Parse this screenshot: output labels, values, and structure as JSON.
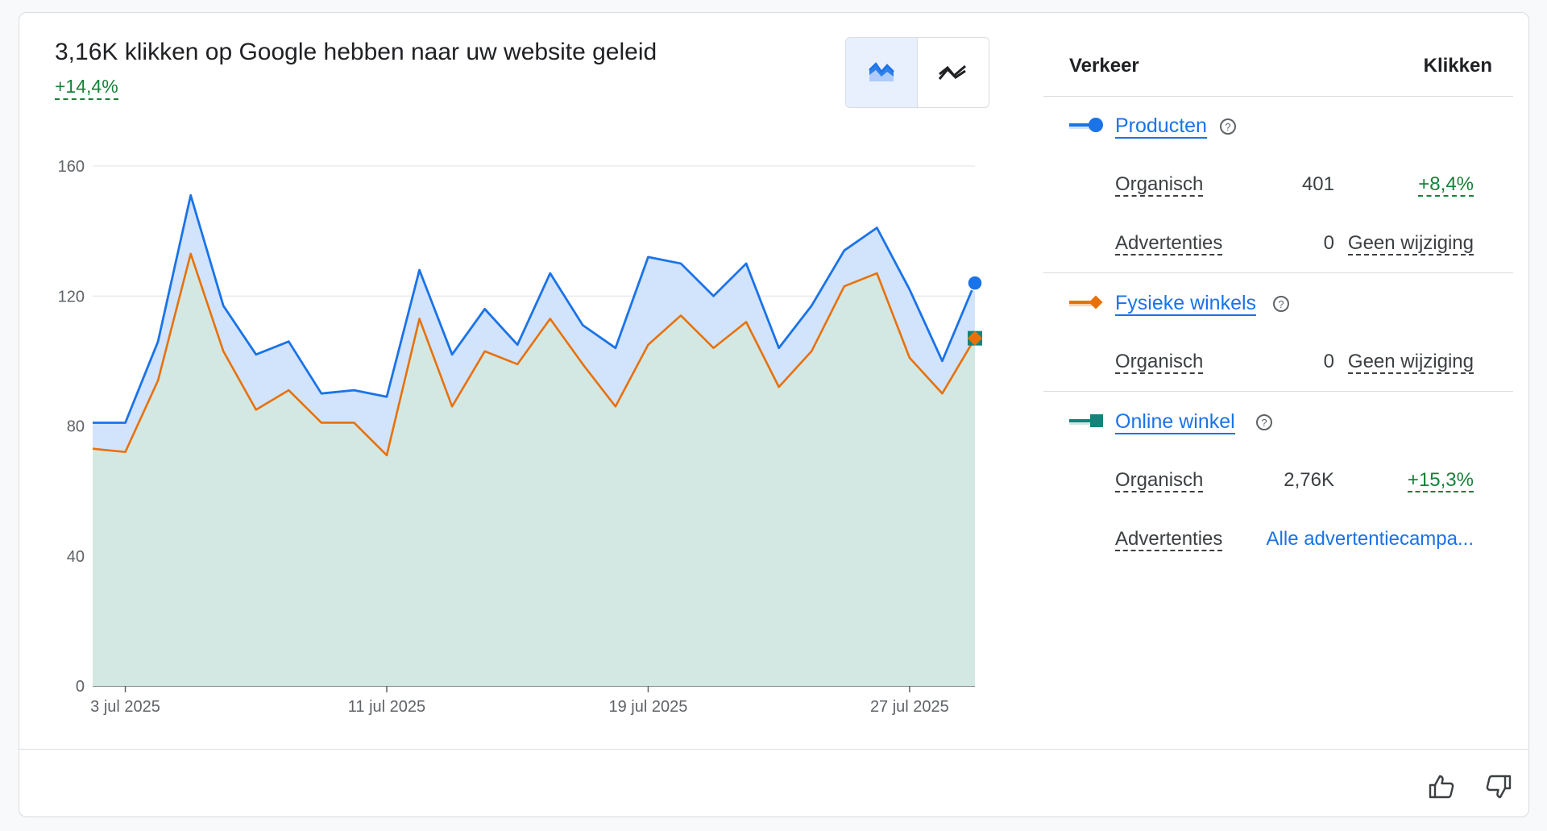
{
  "summary": {
    "title": "3,16K klikken op Google hebben naar uw website geleid",
    "change": "+14,4%"
  },
  "view_toggle": {
    "options": [
      {
        "icon": "area-chart-icon",
        "selected": true
      },
      {
        "icon": "line-chart-icon",
        "selected": false
      }
    ]
  },
  "colors": {
    "blue": "#1a73e8",
    "orange": "#e8710a",
    "teal": "#12857a",
    "blue_fill": "#d2e3fc",
    "teal_fill": "#d3e8e3",
    "positive": "#188038"
  },
  "chart_data": {
    "type": "area",
    "ylim": [
      0,
      160
    ],
    "y_ticks": [
      "0",
      "40",
      "80",
      "120",
      "160"
    ],
    "x_tick_labels": [
      {
        "label": "3 jul 2025",
        "index": 1
      },
      {
        "label": "11 jul 2025",
        "index": 9
      },
      {
        "label": "19 jul 2025",
        "index": 17
      },
      {
        "label": "27 jul 2025",
        "index": 25
      }
    ],
    "x": [
      "2 jul",
      "3 jul",
      "4 jul",
      "5 jul",
      "6 jul",
      "7 jul",
      "8 jul",
      "9 jul",
      "10 jul",
      "11 jul",
      "12 jul",
      "13 jul",
      "14 jul",
      "15 jul",
      "16 jul",
      "17 jul",
      "18 jul",
      "19 jul",
      "20 jul",
      "21 jul",
      "22 jul",
      "23 jul",
      "24 jul",
      "25 jul",
      "26 jul",
      "27 jul",
      "28 jul",
      "29 jul"
    ],
    "series": [
      {
        "name": "Producten",
        "stacked_total": true,
        "values": [
          81,
          81,
          106,
          151,
          117,
          102,
          106,
          90,
          91,
          89,
          128,
          102,
          116,
          105,
          127,
          111,
          104,
          132,
          130,
          120,
          130,
          104,
          117,
          134,
          141,
          122,
          100,
          124
        ]
      },
      {
        "name": "Online winkel",
        "values": [
          73,
          72,
          94,
          133,
          103,
          85,
          91,
          81,
          81,
          71,
          113,
          86,
          103,
          99,
          113,
          99,
          86,
          105,
          114,
          104,
          112,
          92,
          103,
          123,
          127,
          101,
          90,
          107
        ]
      }
    ]
  },
  "traffic": {
    "col_left": "Verkeer",
    "col_right": "Klikken",
    "groups": [
      {
        "name": "Producten",
        "legend_icon": "line-circle-icon",
        "rows": [
          {
            "label": "Organisch",
            "value": "401",
            "change": "+8,4%"
          },
          {
            "label": "Advertenties",
            "value": "0",
            "change": "Geen wijziging"
          }
        ]
      },
      {
        "name": "Fysieke winkels",
        "legend_icon": "line-diamond-icon",
        "rows": [
          {
            "label": "Organisch",
            "value": "0",
            "change": "Geen wijziging"
          }
        ]
      },
      {
        "name": "Online winkel",
        "legend_icon": "line-square-icon",
        "rows": [
          {
            "label": "Organisch",
            "value": "2,76K",
            "change": "+15,3%"
          },
          {
            "label": "Advertenties",
            "link": "Alle advertentiecampa..."
          }
        ]
      }
    ]
  },
  "feedback": {
    "icons": [
      "thumb-up-icon",
      "thumb-down-icon"
    ]
  }
}
